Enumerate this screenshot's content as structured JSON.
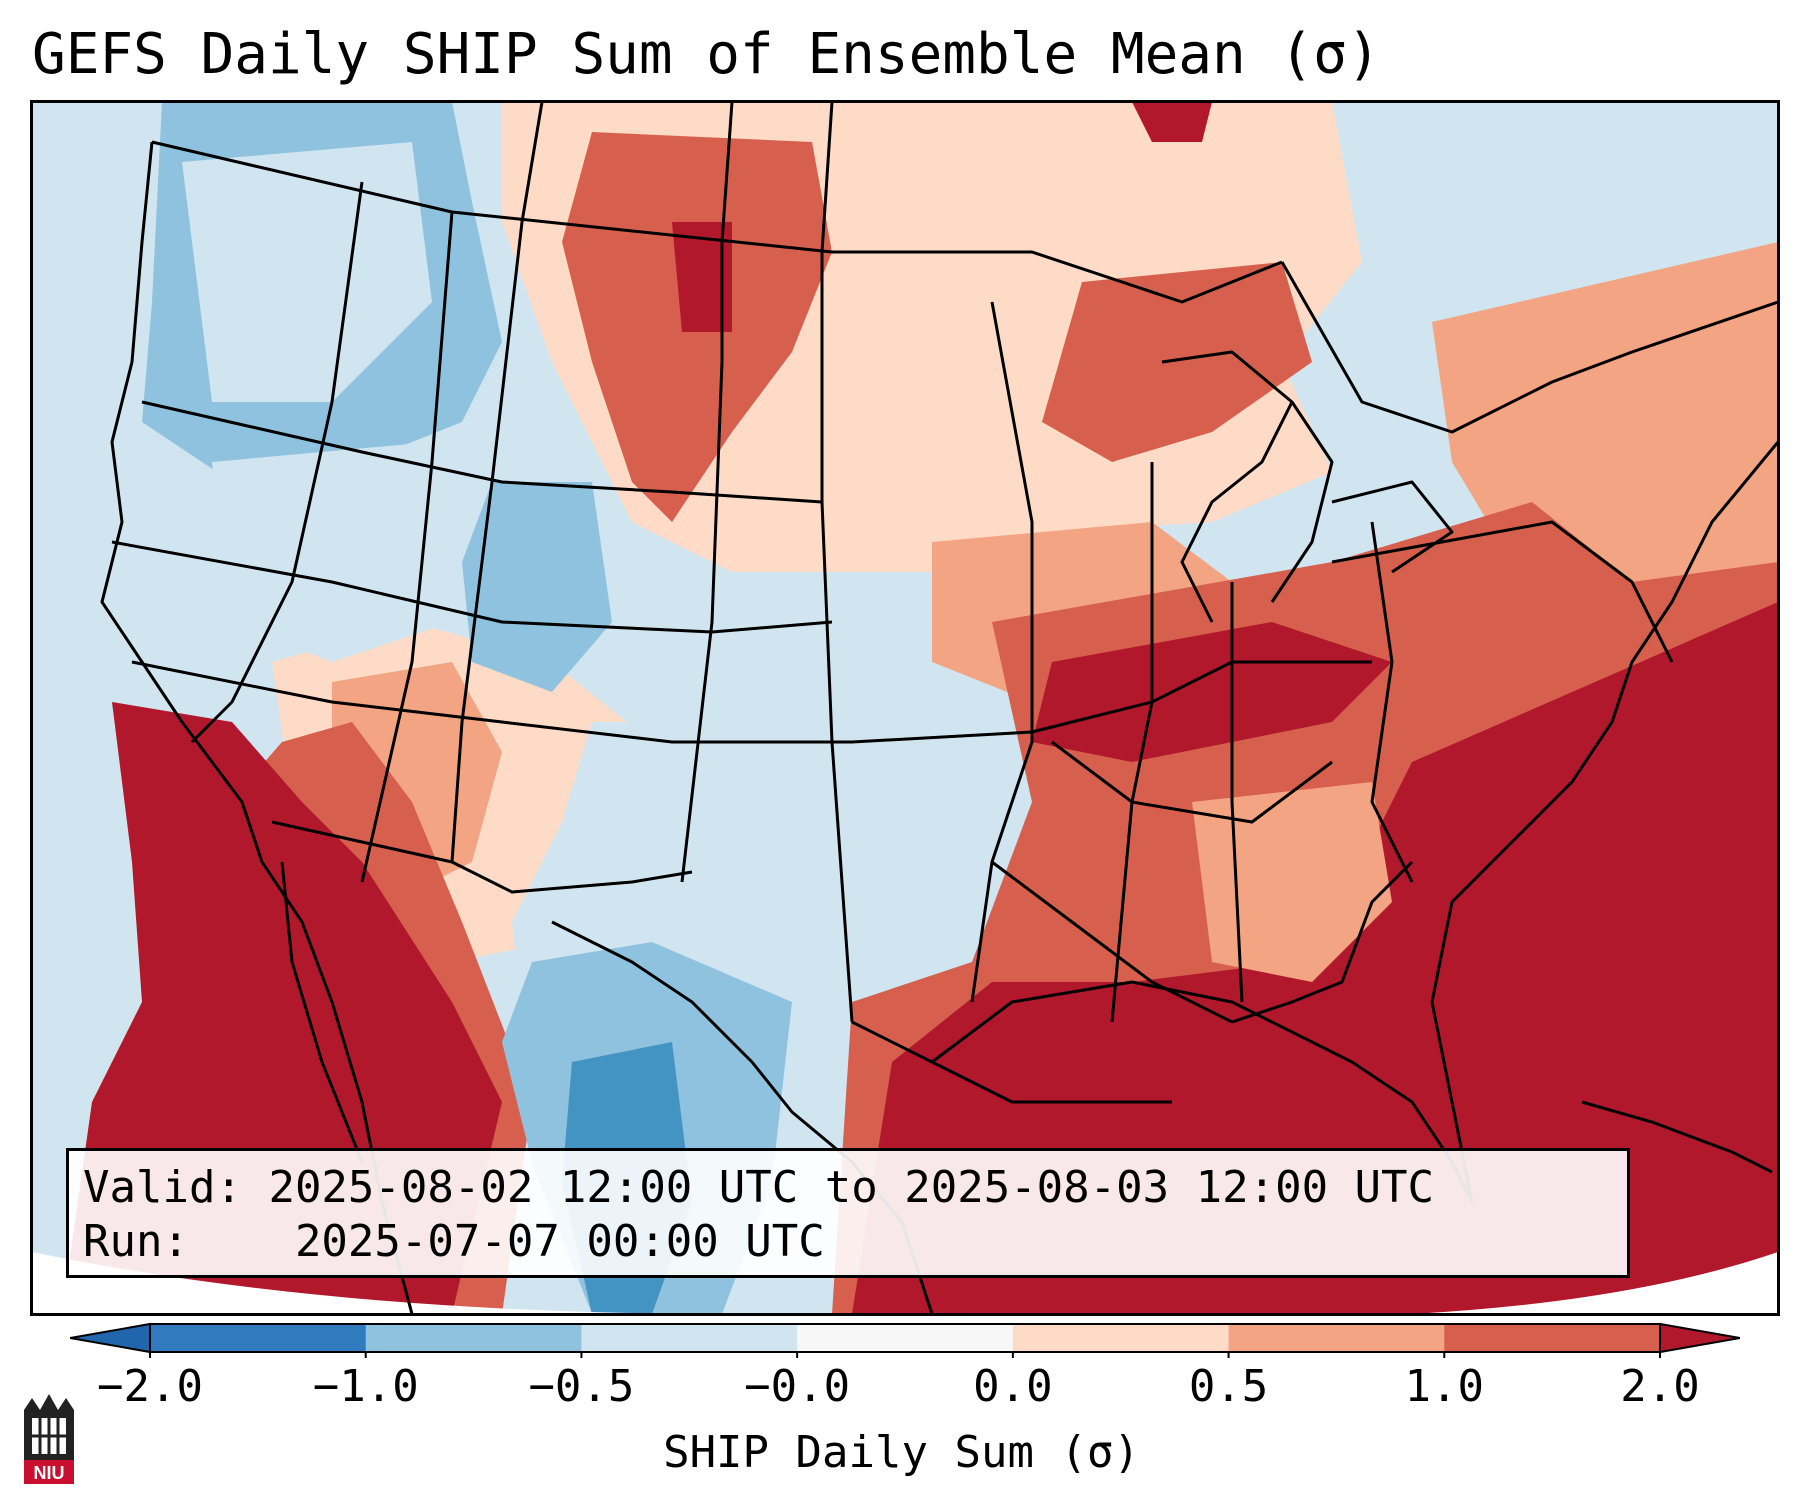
{
  "title": "GEFS Daily SHIP Sum of Ensemble Mean (σ)",
  "info": {
    "valid_label": "Valid:",
    "valid_value": "2025-08-02 12:00 UTC to 2025-08-03 12:00 UTC",
    "run_label": "Run:",
    "run_value": "2025-07-07 00:00 UTC"
  },
  "colorbar": {
    "label": "SHIP Daily Sum (σ)",
    "ticks": [
      "−2.0",
      "−1.0",
      "−0.5",
      "−0.0",
      "0.0",
      "0.5",
      "1.0",
      "2.0"
    ],
    "bins": [
      {
        "color": "#2f7bbd"
      },
      {
        "color": "#8fc2de"
      },
      {
        "color": "#d1e5f0"
      },
      {
        "color": "#f7f7f7"
      },
      {
        "color": "#fddbc7"
      },
      {
        "color": "#f3a482"
      },
      {
        "color": "#d6604d"
      }
    ],
    "under_color": "#2166ac",
    "over_color": "#b2182b"
  },
  "logo": {
    "text": "NIU",
    "color": "#c8102e"
  }
}
